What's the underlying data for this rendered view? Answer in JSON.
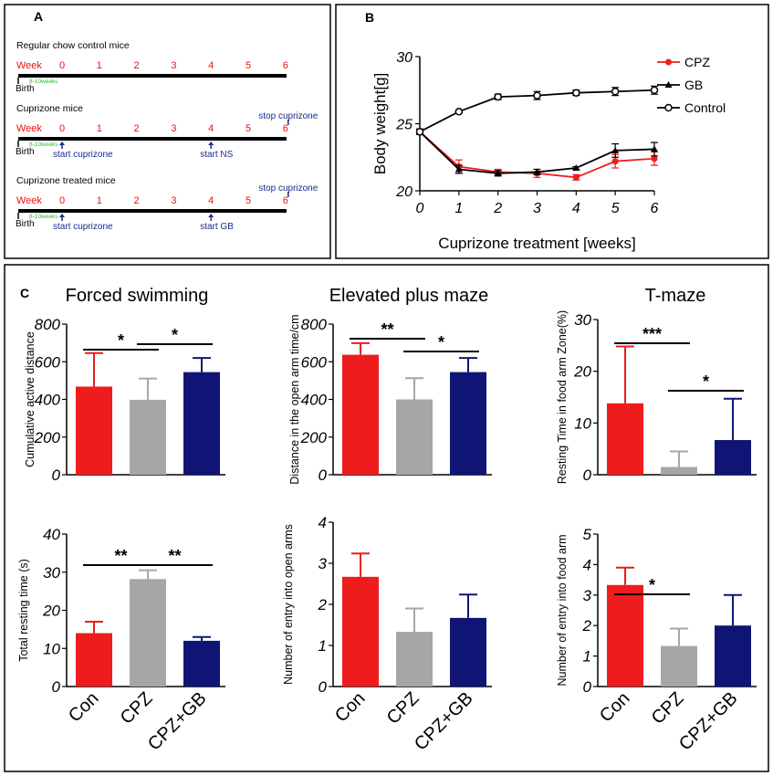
{
  "panel_a": {
    "label": "A",
    "weeks_label": "Week",
    "weeks": [
      "0",
      "1",
      "2",
      "3",
      "4",
      "5",
      "6"
    ],
    "rows": [
      {
        "title": "Regular chow control mice",
        "birth": "Birth",
        "age": "8-10weeks",
        "events": []
      },
      {
        "title": "Cuprizone mice",
        "birth": "Birth",
        "age": "8-10weeks",
        "events": [
          {
            "week": 0,
            "text": "start cuprizone",
            "side": "below"
          },
          {
            "week": 4,
            "text": "start NS",
            "side": "below"
          },
          {
            "week": 6,
            "text": "stop cuprizone",
            "side": "above"
          }
        ]
      },
      {
        "title": "Cuprizone treated mice",
        "birth": "Birth",
        "age": "8-10weeks",
        "events": [
          {
            "week": 0,
            "text": "start cuprizone",
            "side": "below"
          },
          {
            "week": 4,
            "text": "start GB",
            "side": "below"
          },
          {
            "week": 6,
            "text": "stop cuprizone",
            "side": "above"
          }
        ]
      }
    ]
  },
  "panel_b": {
    "label": "B"
  },
  "panel_c": {
    "label": "C",
    "group_labels": [
      "Con",
      "CPZ",
      "CPZ+GB"
    ],
    "colors": {
      "Con": "#ee1c1c",
      "CPZ": "#a6a6a6",
      "CPZ+GB": "#0f1475",
      "CPZ_line": "#ee1c1c",
      "GB_line": "#000000",
      "Control_line": "#000000",
      "cap_red": "#ee1c1c",
      "cap_grey": "#a6a6a6",
      "cap_blue": "#0f1475"
    },
    "column_titles": [
      "Forced swimming",
      "Elevated plus maze",
      "T-maze"
    ]
  },
  "chart_data": [
    {
      "id": "body_weight",
      "type": "line",
      "panel": "B",
      "title": "",
      "xlabel": "Cuprizone treatment  [weeks]",
      "ylabel": "Body weight[g]",
      "x": [
        0,
        1,
        2,
        3,
        4,
        5,
        6
      ],
      "xticks": [
        "0",
        "1",
        "2",
        "3",
        "4",
        "5",
        "6"
      ],
      "yticks": [
        "20",
        "25",
        "30"
      ],
      "ylim": [
        20,
        30
      ],
      "legend_position": "top-right",
      "series": [
        {
          "name": "CPZ",
          "marker": "filled-circle",
          "values": [
            24.4,
            21.8,
            21.4,
            21.3,
            21.0,
            22.2,
            22.4
          ],
          "errors": [
            0.2,
            0.5,
            0.2,
            0.3,
            0.2,
            0.5,
            0.5
          ]
        },
        {
          "name": "GB",
          "marker": "triangle",
          "values": [
            24.4,
            21.6,
            21.3,
            21.4,
            21.7,
            23.0,
            23.1
          ],
          "errors": [
            0.2,
            0.3,
            0.2,
            0.2,
            0.1,
            0.5,
            0.5
          ]
        },
        {
          "name": "Control",
          "marker": "open-circle",
          "values": [
            24.4,
            25.9,
            27.0,
            27.1,
            27.3,
            27.4,
            27.5
          ],
          "errors": [
            0.2,
            0.1,
            0.2,
            0.3,
            0.2,
            0.3,
            0.3
          ]
        }
      ]
    },
    {
      "id": "fs_distance",
      "type": "bar",
      "title": "",
      "xlabel": "",
      "ylabel": "Cumulative active distance",
      "categories": [
        "Con",
        "CPZ",
        "CPZ+GB"
      ],
      "values": [
        468,
        398,
        545
      ],
      "errors": [
        178,
        113,
        75
      ],
      "yticks": [
        "0",
        "200",
        "400",
        "600",
        "800"
      ],
      "ylim": [
        0,
        800
      ],
      "significance": [
        {
          "from": 0,
          "to": 1,
          "text": "*"
        },
        {
          "from": 1,
          "to": 2,
          "text": "*"
        }
      ]
    },
    {
      "id": "epm_distance",
      "type": "bar",
      "title": "",
      "xlabel": "",
      "ylabel": "Distance in the open arm time/cm",
      "categories": [
        "Con",
        "CPZ",
        "CPZ+GB"
      ],
      "values": [
        637,
        400,
        545
      ],
      "errors": [
        62,
        113,
        75
      ],
      "yticks": [
        "0",
        "200",
        "400",
        "600",
        "800"
      ],
      "ylim": [
        0,
        800
      ],
      "significance": [
        {
          "from": 0,
          "to": 1,
          "text": "**"
        },
        {
          "from": 1,
          "to": 2,
          "text": "*"
        }
      ]
    },
    {
      "id": "tm_resting",
      "type": "bar",
      "title": "",
      "xlabel": "",
      "ylabel": "Resting Time in food arm Zone(%)",
      "categories": [
        "Con",
        "CPZ",
        "CPZ+GB"
      ],
      "values": [
        13.8,
        1.5,
        6.7
      ],
      "errors": [
        11,
        3,
        8
      ],
      "yticks": [
        "0",
        "10",
        "20",
        "30"
      ],
      "ylim": [
        0,
        30
      ],
      "significance": [
        {
          "from": 0,
          "to": 1,
          "text": "***"
        },
        {
          "from": 1,
          "to": 2,
          "text": "*"
        }
      ]
    },
    {
      "id": "fs_resting",
      "type": "bar",
      "title": "",
      "xlabel": "",
      "ylabel": "Total resting time (s)",
      "categories": [
        "Con",
        "CPZ",
        "CPZ+GB"
      ],
      "values": [
        14,
        28.2,
        12
      ],
      "errors": [
        3,
        2.3,
        1
      ],
      "yticks": [
        "0",
        "10",
        "20",
        "30",
        "40"
      ],
      "ylim": [
        0,
        40
      ],
      "significance": [
        {
          "from": 0,
          "to": 1,
          "text": "**"
        },
        {
          "from": 1,
          "to": 2,
          "text": "**"
        }
      ]
    },
    {
      "id": "epm_entries",
      "type": "bar",
      "title": "",
      "xlabel": "",
      "ylabel": "Number of entry into open arms",
      "categories": [
        "Con",
        "CPZ",
        "CPZ+GB"
      ],
      "values": [
        2.67,
        1.33,
        1.67
      ],
      "errors": [
        0.57,
        0.57,
        0.57
      ],
      "yticks": [
        "0",
        "1",
        "2",
        "3",
        "4"
      ],
      "ylim": [
        0,
        4
      ],
      "significance": []
    },
    {
      "id": "tm_entries",
      "type": "bar",
      "title": "",
      "xlabel": "",
      "ylabel": "Number of entry into food arm",
      "categories": [
        "Con",
        "CPZ",
        "CPZ+GB"
      ],
      "values": [
        3.33,
        1.33,
        2.0
      ],
      "errors": [
        0.57,
        0.57,
        1.0
      ],
      "yticks": [
        "0",
        "1",
        "2",
        "3",
        "4",
        "5"
      ],
      "ylim": [
        0,
        5
      ],
      "significance": [
        {
          "from": 0,
          "to": 1,
          "text": "*"
        }
      ]
    }
  ]
}
